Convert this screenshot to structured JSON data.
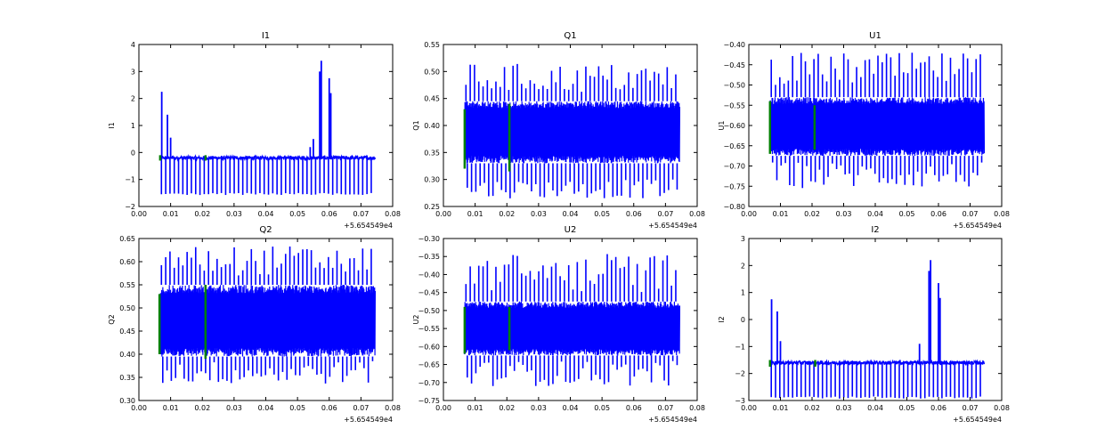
{
  "figure": {
    "background": "#ffffff"
  },
  "colors": {
    "signal": "#0000ff",
    "marker": "#007f00",
    "axes": "#000000"
  },
  "chart_data": [
    {
      "type": "line",
      "title": "I1",
      "xlabel": "",
      "ylabel": "I1",
      "xlim": [
        0.0,
        0.08
      ],
      "ylim": [
        -2,
        4
      ],
      "xticks": [
        "0.00",
        "0.01",
        "0.02",
        "0.03",
        "0.04",
        "0.05",
        "0.06",
        "0.07",
        "0.08"
      ],
      "yticks": [
        "−2",
        "−1",
        "0",
        "1",
        "2",
        "3",
        "4"
      ],
      "ytick_values": [
        -2,
        -1,
        0,
        1,
        2,
        3,
        4
      ],
      "offset_label": "+5.654549e4",
      "series": [
        {
          "name": "I1",
          "x_range": [
            0.0067,
            0.0745
          ],
          "baseline": -0.2,
          "noise": 0.07,
          "neg_spike": -1.5,
          "pos_spikes": [
            [
              0.0072,
              2.25
            ],
            [
              0.009,
              1.4
            ],
            [
              0.01,
              0.55
            ],
            [
              0.054,
              0.2
            ],
            [
              0.055,
              0.5
            ],
            [
              0.057,
              3.0
            ],
            [
              0.0575,
              3.4
            ],
            [
              0.06,
              2.75
            ],
            [
              0.0605,
              2.2
            ]
          ]
        }
      ],
      "markers": [
        [
          0.0067,
          -0.3,
          -0.1
        ],
        [
          0.021,
          -0.3,
          -0.1
        ]
      ]
    },
    {
      "type": "line",
      "title": "Q1",
      "xlabel": "",
      "ylabel": "Q1",
      "xlim": [
        0.0,
        0.08
      ],
      "ylim": [
        0.25,
        0.55
      ],
      "xticks": [
        "0.00",
        "0.01",
        "0.02",
        "0.03",
        "0.04",
        "0.05",
        "0.06",
        "0.07",
        "0.08"
      ],
      "yticks": [
        "0.25",
        "0.30",
        "0.35",
        "0.40",
        "0.45",
        "0.50",
        "0.55"
      ],
      "ytick_values": [
        0.25,
        0.3,
        0.35,
        0.4,
        0.45,
        0.5,
        0.55
      ],
      "offset_label": "+5.654549e4",
      "series": [
        {
          "name": "Q1",
          "x_range": [
            0.0067,
            0.0745
          ],
          "band": [
            0.33,
            0.445
          ],
          "spike_high": [
            0.46,
            0.515
          ],
          "spike_low": [
            0.265,
            0.3
          ]
        }
      ],
      "markers": [
        [
          0.0067,
          0.32,
          0.43
        ],
        [
          0.0208,
          0.315,
          0.44
        ]
      ]
    },
    {
      "type": "line",
      "title": "U1",
      "xlabel": "",
      "ylabel": "U1",
      "xlim": [
        0.0,
        0.08
      ],
      "ylim": [
        -0.8,
        -0.4
      ],
      "xticks": [
        "0.00",
        "0.01",
        "0.02",
        "0.03",
        "0.04",
        "0.05",
        "0.06",
        "0.07",
        "0.08"
      ],
      "yticks": [
        "−0.80",
        "−0.75",
        "−0.70",
        "−0.65",
        "−0.60",
        "−0.55",
        "−0.50",
        "−0.45",
        "−0.40"
      ],
      "ytick_values": [
        -0.8,
        -0.75,
        -0.7,
        -0.65,
        -0.6,
        -0.55,
        -0.5,
        -0.45,
        -0.4
      ],
      "offset_label": "+5.654549e4",
      "series": [
        {
          "name": "U1",
          "x_range": [
            0.0067,
            0.0745
          ],
          "band": [
            -0.675,
            -0.53
          ],
          "spike_high": [
            -0.5,
            -0.42
          ],
          "spike_low": [
            -0.755,
            -0.69
          ]
        }
      ],
      "markers": [
        [
          0.0067,
          -0.67,
          -0.54
        ],
        [
          0.0208,
          -0.66,
          -0.55
        ]
      ]
    },
    {
      "type": "line",
      "title": "Q2",
      "xlabel": "",
      "ylabel": "Q2",
      "xlim": [
        0.0,
        0.08
      ],
      "ylim": [
        0.3,
        0.65
      ],
      "xticks": [
        "0.00",
        "0.01",
        "0.02",
        "0.03",
        "0.04",
        "0.05",
        "0.06",
        "0.07",
        "0.08"
      ],
      "yticks": [
        "0.30",
        "0.35",
        "0.40",
        "0.45",
        "0.50",
        "0.55",
        "0.60",
        "0.65"
      ],
      "ytick_values": [
        0.3,
        0.35,
        0.4,
        0.45,
        0.5,
        0.55,
        0.6,
        0.65
      ],
      "offset_label": "+5.654549e4",
      "series": [
        {
          "name": "Q2",
          "x_range": [
            0.0067,
            0.0745
          ],
          "band": [
            0.395,
            0.55
          ],
          "spike_high": [
            0.57,
            0.635
          ],
          "spike_low": [
            0.335,
            0.385
          ]
        }
      ],
      "markers": [
        [
          0.0065,
          0.4,
          0.53
        ],
        [
          0.021,
          0.39,
          0.55
        ]
      ]
    },
    {
      "type": "line",
      "title": "U2",
      "xlabel": "",
      "ylabel": "U2",
      "xlim": [
        0.0,
        0.08
      ],
      "ylim": [
        -0.75,
        -0.3
      ],
      "xticks": [
        "0.00",
        "0.01",
        "0.02",
        "0.03",
        "0.04",
        "0.05",
        "0.06",
        "0.07",
        "0.08"
      ],
      "yticks": [
        "−0.75",
        "−0.70",
        "−0.65",
        "−0.60",
        "−0.55",
        "−0.50",
        "−0.45",
        "−0.40",
        "−0.35",
        "−0.30"
      ],
      "ytick_values": [
        -0.75,
        -0.7,
        -0.65,
        -0.6,
        -0.55,
        -0.5,
        -0.45,
        -0.4,
        -0.35,
        -0.3
      ],
      "offset_label": "+5.654549e4",
      "series": [
        {
          "name": "U2",
          "x_range": [
            0.0067,
            0.0745
          ],
          "band": [
            -0.625,
            -0.475
          ],
          "spike_high": [
            -0.45,
            -0.34
          ],
          "spike_low": [
            -0.71,
            -0.64
          ]
        }
      ],
      "markers": [
        [
          0.0067,
          -0.62,
          -0.49
        ],
        [
          0.0208,
          -0.61,
          -0.49
        ]
      ]
    },
    {
      "type": "line",
      "title": "I2",
      "xlabel": "",
      "ylabel": "I2",
      "xlim": [
        0.0,
        0.08
      ],
      "ylim": [
        -3,
        3
      ],
      "xticks": [
        "0.00",
        "0.01",
        "0.02",
        "0.03",
        "0.04",
        "0.05",
        "0.06",
        "0.07",
        "0.08"
      ],
      "yticks": [
        "−3",
        "−2",
        "−1",
        "0",
        "1",
        "2",
        "3"
      ],
      "ytick_values": [
        -3,
        -2,
        -1,
        0,
        1,
        2,
        3
      ],
      "offset_label": "+5.654549e4",
      "series": [
        {
          "name": "I2",
          "x_range": [
            0.0067,
            0.0745
          ],
          "baseline": -1.6,
          "noise": 0.07,
          "neg_spike": -2.85,
          "pos_spikes": [
            [
              0.0072,
              0.75
            ],
            [
              0.009,
              0.3
            ],
            [
              0.01,
              -0.8
            ],
            [
              0.054,
              -0.9
            ],
            [
              0.057,
              1.8
            ],
            [
              0.0575,
              2.2
            ],
            [
              0.06,
              1.35
            ],
            [
              0.0605,
              0.8
            ]
          ]
        }
      ],
      "markers": [
        [
          0.0067,
          -1.75,
          -1.5
        ],
        [
          0.021,
          -1.75,
          -1.5
        ]
      ]
    }
  ]
}
